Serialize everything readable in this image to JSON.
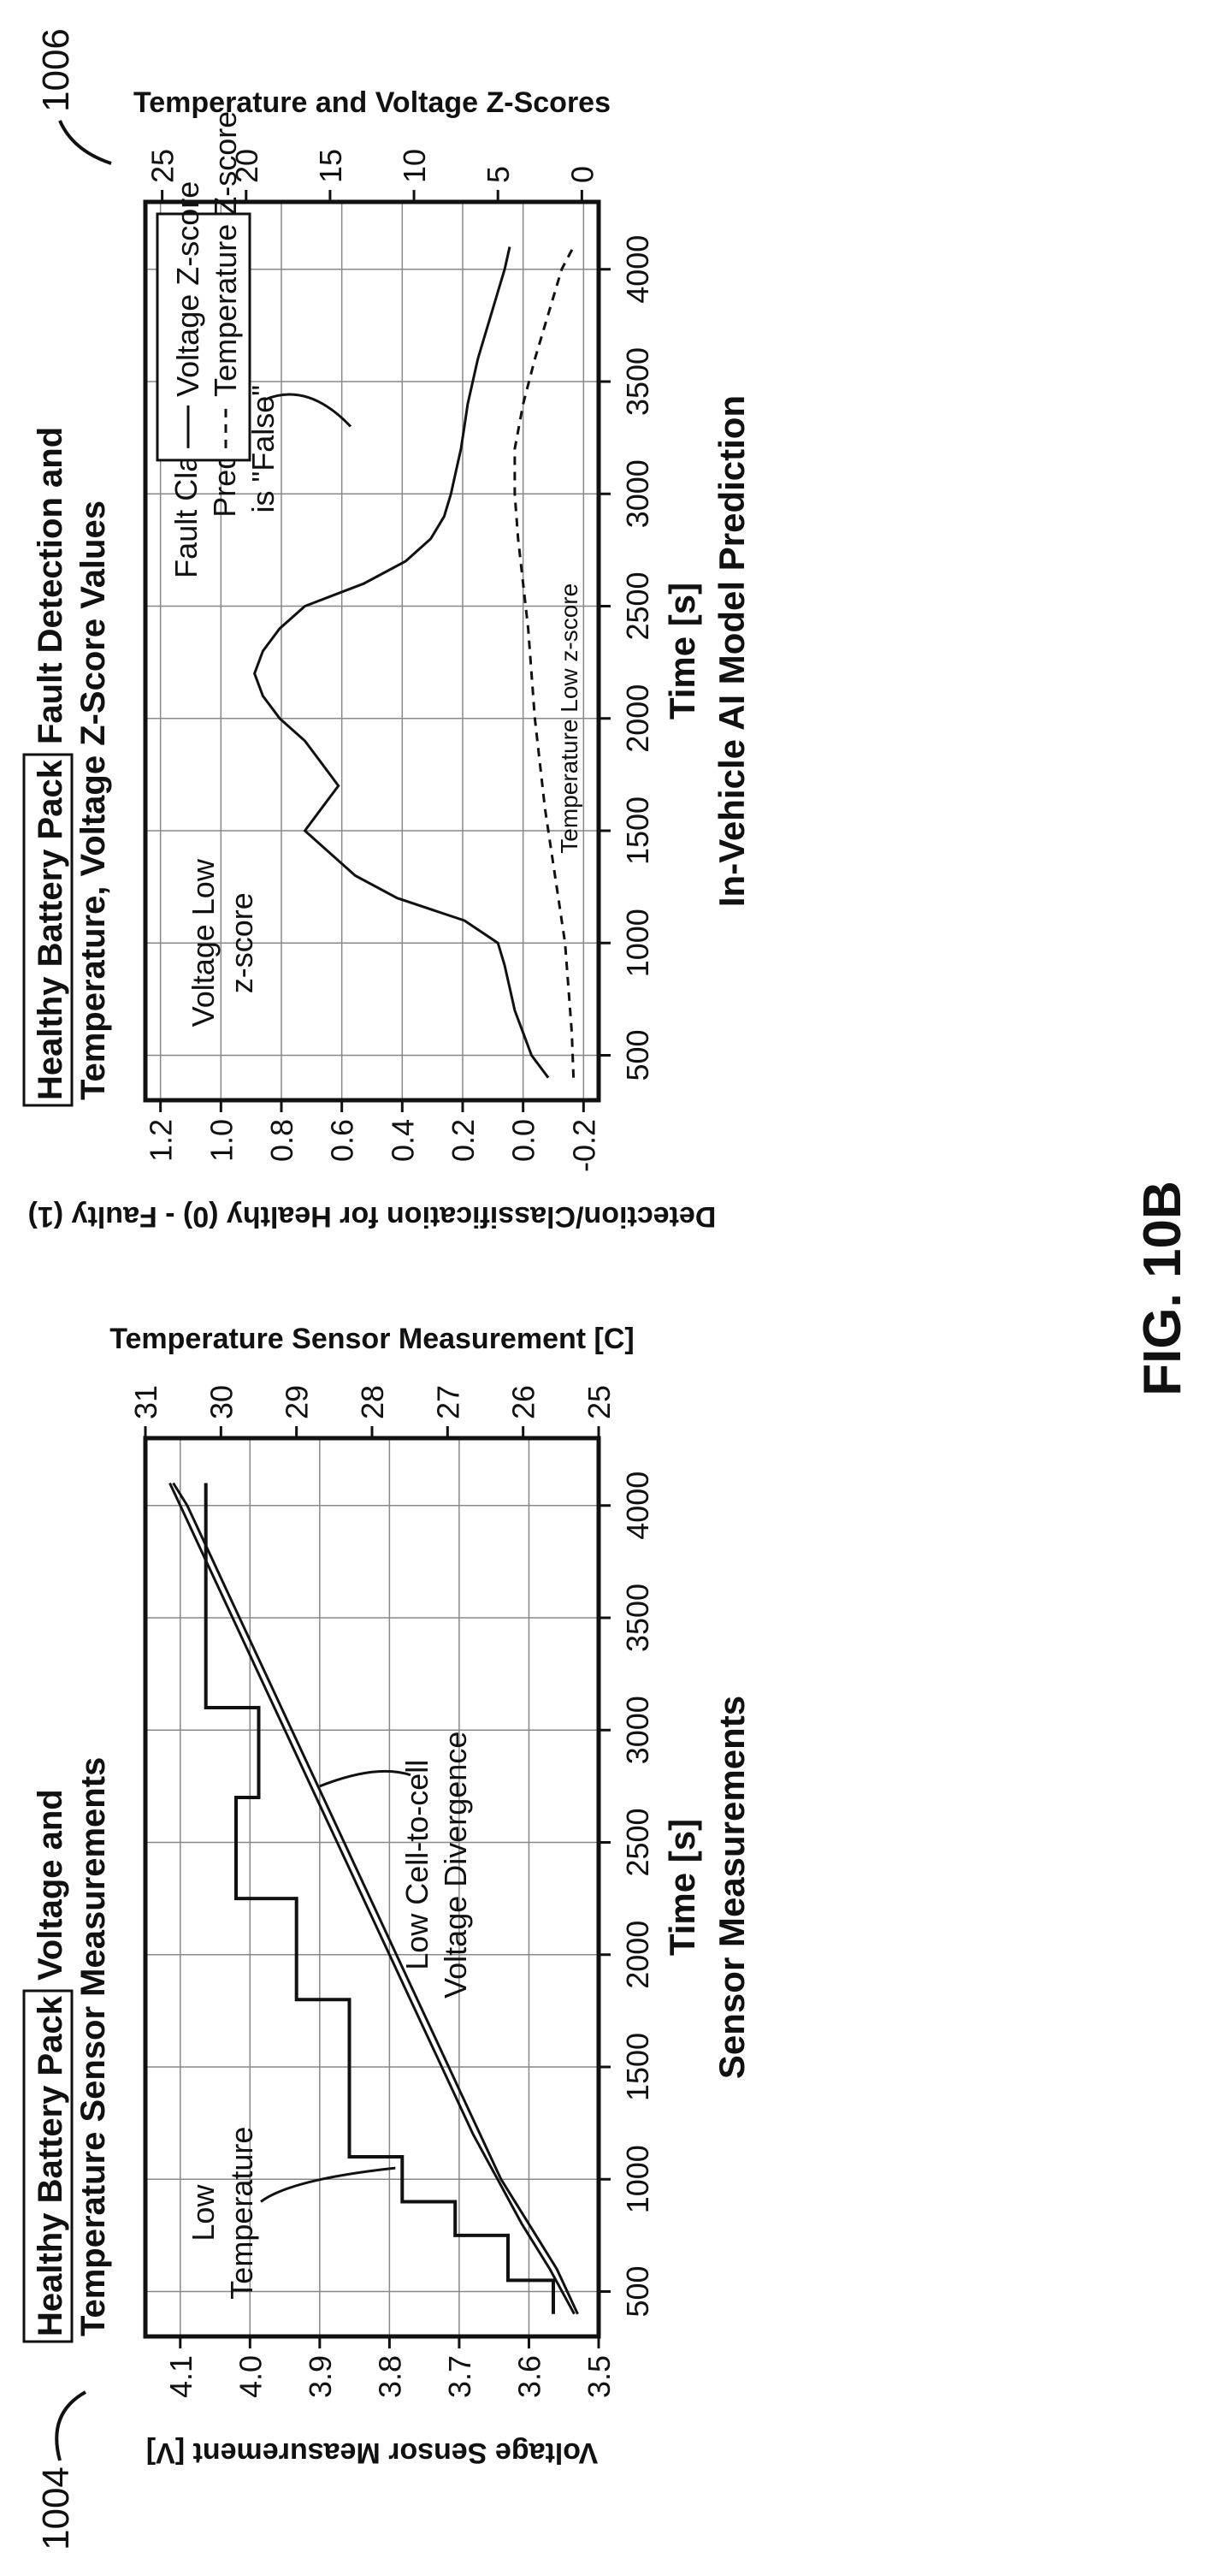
{
  "figure": {
    "label": "FIG. 10B",
    "ref_left": "1004",
    "ref_right": "1006"
  },
  "chart_data": [
    {
      "type": "line",
      "panel": "left",
      "caption": "Sensor Measurements",
      "title_boxed": "Healthy Battery Pack",
      "title_rest": "Voltage and",
      "title_line2": "Temperature Sensor Measurements",
      "xlabel": "Time [s]",
      "ylabel_left": "Voltage Sensor Measurement [V]",
      "ylabel_right": "Temperature Sensor Measurement [C]",
      "xlim": [
        300,
        4300
      ],
      "ylim_left": [
        3.5,
        4.15
      ],
      "ylim_right": [
        25,
        31
      ],
      "x_ticks": [
        500,
        1000,
        1500,
        2000,
        2500,
        3000,
        3500,
        4000
      ],
      "y_ticks_left": [
        3.5,
        3.6,
        3.7,
        3.8,
        3.9,
        4.0,
        4.1
      ],
      "y_ticks_right": [
        25,
        26,
        27,
        28,
        29,
        30,
        31
      ],
      "y_tick_labels_left": [
        "3.5",
        "3.6",
        "3.7",
        "3.8",
        "3.9",
        "4.0",
        "4.1"
      ],
      "y_tick_labels_right": [
        "25",
        "26",
        "27",
        "28",
        "29",
        "30",
        "31"
      ],
      "grid": true,
      "series": [
        {
          "role": "voltage-cell-a",
          "axis": "left",
          "x": [
            400,
            600,
            800,
            1000,
            1200,
            1400,
            1600,
            1800,
            2000,
            2200,
            2400,
            2600,
            2800,
            3000,
            3200,
            3400,
            3600,
            3800,
            4000,
            4100
          ],
          "y": [
            3.53,
            3.56,
            3.6,
            3.64,
            3.67,
            3.7,
            3.73,
            3.76,
            3.79,
            3.82,
            3.85,
            3.88,
            3.91,
            3.94,
            3.97,
            4.0,
            4.03,
            4.06,
            4.09,
            4.11
          ]
        },
        {
          "role": "voltage-cell-b",
          "axis": "left",
          "x": [
            400,
            600,
            800,
            1000,
            1200,
            1400,
            1600,
            1800,
            2000,
            2200,
            2400,
            2600,
            2800,
            3000,
            3200,
            3400,
            3600,
            3800,
            4000,
            4100
          ],
          "y": [
            3.535,
            3.57,
            3.61,
            3.645,
            3.68,
            3.71,
            3.74,
            3.77,
            3.8,
            3.83,
            3.86,
            3.89,
            3.92,
            3.95,
            3.98,
            4.01,
            4.04,
            4.07,
            4.1,
            4.115
          ]
        },
        {
          "role": "temperature-step",
          "axis": "right",
          "x": [
            400,
            550,
            550,
            750,
            750,
            900,
            900,
            1100,
            1100,
            1500,
            1500,
            1800,
            1800,
            2250,
            2250,
            2700,
            2700,
            3100,
            3100,
            4100
          ],
          "y": [
            25.6,
            25.6,
            26.2,
            26.2,
            26.9,
            26.9,
            27.6,
            27.6,
            28.3,
            28.3,
            28.3,
            28.3,
            29.0,
            29.0,
            29.8,
            29.8,
            29.5,
            29.5,
            30.2,
            30.2
          ]
        }
      ],
      "annotations": [
        {
          "lines": [
            "Low",
            "Temperature"
          ]
        },
        {
          "lines": [
            "Low Cell-to-cell",
            "Voltage Divergence"
          ]
        }
      ]
    },
    {
      "type": "line",
      "panel": "right",
      "caption": "In-Vehicle AI Model Prediction",
      "title_boxed": "Healthy Battery Pack",
      "title_rest": "Fault Detection and",
      "title_line2": "Temperature, Voltage Z-Score Values",
      "xlabel": "Time [s]",
      "ylabel_left": "Detection/Classification for Healthy (0) - Faulty (1)",
      "ylabel_right": "Temperature and Voltage Z-Scores",
      "xlim": [
        300,
        4300
      ],
      "ylim_left": [
        -0.25,
        1.25
      ],
      "ylim_right": [
        -1,
        26
      ],
      "x_ticks": [
        500,
        1000,
        1500,
        2000,
        2500,
        3000,
        3500,
        4000
      ],
      "y_ticks_left": [
        -0.2,
        0.0,
        0.2,
        0.4,
        0.6,
        0.8,
        1.0,
        1.2
      ],
      "y_ticks_right": [
        0,
        5,
        10,
        15,
        20,
        25
      ],
      "y_tick_labels_left": [
        "-0.2",
        "0.0",
        "0.2",
        "0.4",
        "0.6",
        "0.8",
        "1.0",
        "1.2"
      ],
      "y_tick_labels_right": [
        "0",
        "5",
        "10",
        "15",
        "20",
        "25"
      ],
      "grid": true,
      "legend": {
        "placement": "top-right",
        "entries": [
          "Voltage Z-score",
          "Temperature Z-score"
        ]
      },
      "series": [
        {
          "name": "Voltage Z-score",
          "axis": "right",
          "x": [
            400,
            500,
            600,
            700,
            800,
            900,
            1000,
            1100,
            1200,
            1300,
            1400,
            1500,
            1600,
            1700,
            1800,
            1900,
            2000,
            2100,
            2200,
            2300,
            2400,
            2500,
            2600,
            2700,
            2800,
            2900,
            3000,
            3100,
            3200,
            3300,
            3400,
            3500,
            3600,
            3700,
            3800,
            3900,
            4000,
            4100
          ],
          "y": [
            2.0,
            3.0,
            3.5,
            4.0,
            4.3,
            4.6,
            5.0,
            7.0,
            11.0,
            13.5,
            15.0,
            16.5,
            15.5,
            14.5,
            15.5,
            16.5,
            18.0,
            19.0,
            19.5,
            19.0,
            18.0,
            16.5,
            13.0,
            10.5,
            9.0,
            8.2,
            7.8,
            7.5,
            7.2,
            7.0,
            6.8,
            6.5,
            6.2,
            5.8,
            5.4,
            5.0,
            4.6,
            4.3
          ]
        },
        {
          "name": "Temperature Z-score",
          "axis": "right",
          "x": [
            400,
            600,
            800,
            1000,
            1200,
            1400,
            1600,
            1800,
            2000,
            2200,
            2400,
            2600,
            2800,
            3000,
            3200,
            3400,
            3600,
            3800,
            4000,
            4100
          ],
          "y": [
            0.5,
            0.6,
            0.8,
            1.0,
            1.4,
            1.8,
            2.2,
            2.5,
            2.8,
            3.0,
            3.2,
            3.5,
            3.8,
            4.0,
            4.0,
            3.5,
            2.8,
            2.0,
            1.2,
            0.5
          ]
        }
      ],
      "annotations": [
        {
          "lines": [
            "Voltage Low",
            "z-score"
          ]
        },
        {
          "lines": [
            "Temperature Low z-score"
          ]
        },
        {
          "lines": [
            "Fault Classification",
            "Prediction",
            "is \"False\""
          ]
        }
      ]
    }
  ]
}
